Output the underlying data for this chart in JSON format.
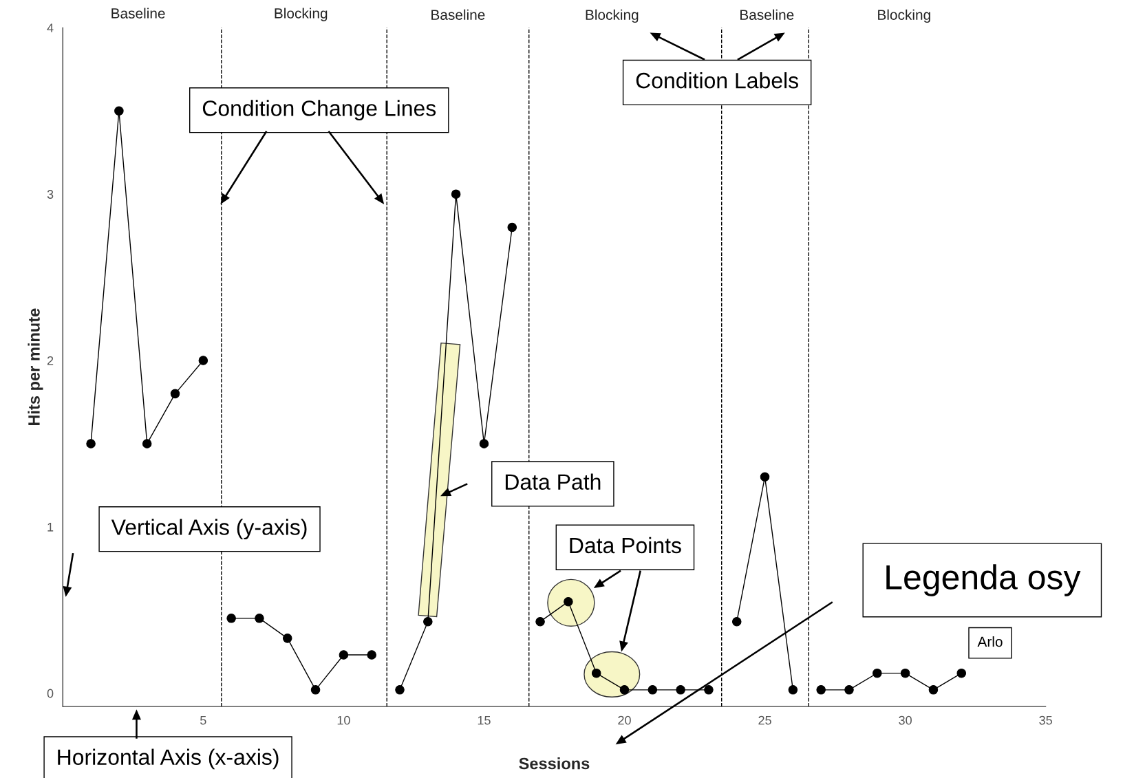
{
  "chart_data": {
    "type": "line",
    "xlabel": "Sessions",
    "ylabel": "Hits per minute",
    "xlim": [
      0,
      35
    ],
    "xticks": [
      5,
      10,
      15,
      20,
      25,
      30,
      35
    ],
    "ylim": [
      -0.08,
      4
    ],
    "yticks": [
      0,
      1,
      2,
      3,
      4
    ],
    "grid": false,
    "legend": false,
    "marker": "circle",
    "line_style": "solid",
    "series": [
      {
        "color": "#000000",
        "x": [
          1,
          2,
          3,
          4,
          5
        ],
        "values": [
          1.5,
          3.5,
          1.5,
          1.8,
          2.0
        ]
      },
      {
        "color": "#000000",
        "x": [
          6,
          7,
          8,
          9,
          10,
          11
        ],
        "values": [
          0.45,
          0.45,
          0.33,
          0.02,
          0.23,
          0.23
        ]
      },
      {
        "color": "#000000",
        "x": [
          12,
          13,
          14,
          15,
          16
        ],
        "values": [
          0.02,
          0.43,
          3.0,
          1.5,
          2.8
        ]
      },
      {
        "color": "#000000",
        "x": [
          17,
          18,
          19,
          20,
          21,
          22,
          23
        ],
        "values": [
          0.43,
          0.55,
          0.12,
          0.02,
          0.02,
          0.02,
          0.02
        ]
      },
      {
        "color": "#000000",
        "x": [
          24,
          25,
          26
        ],
        "values": [
          0.43,
          1.3,
          0.02
        ]
      },
      {
        "color": "#000000",
        "x": [
          27,
          28,
          29,
          30,
          31,
          32
        ],
        "values": [
          0.02,
          0.02,
          0.12,
          0.12,
          0.02,
          0.12
        ]
      }
    ],
    "ref_lines": [
      {
        "axis": "x",
        "value": 5.65,
        "color": "#000000",
        "line_style": "dashed"
      },
      {
        "axis": "x",
        "value": 11.54,
        "color": "#000000",
        "line_style": "dashed"
      },
      {
        "axis": "x",
        "value": 16.6,
        "color": "#000000",
        "line_style": "dashed"
      },
      {
        "axis": "x",
        "value": 23.46,
        "color": "#000000",
        "line_style": "dashed"
      },
      {
        "axis": "x",
        "value": 26.56,
        "color": "#000000",
        "line_style": "dashed"
      }
    ],
    "annotations": [
      "Baseline",
      "Blocking",
      "Baseline",
      "Blocking",
      "Baseline",
      "Blocking",
      "Condition Change Lines",
      "Condition Labels",
      "Data Path",
      "Vertical Axis (y-axis)",
      "Data Points",
      "Legenda osy",
      "Horizontal Axis (x-axis)",
      "Arlo"
    ]
  }
}
